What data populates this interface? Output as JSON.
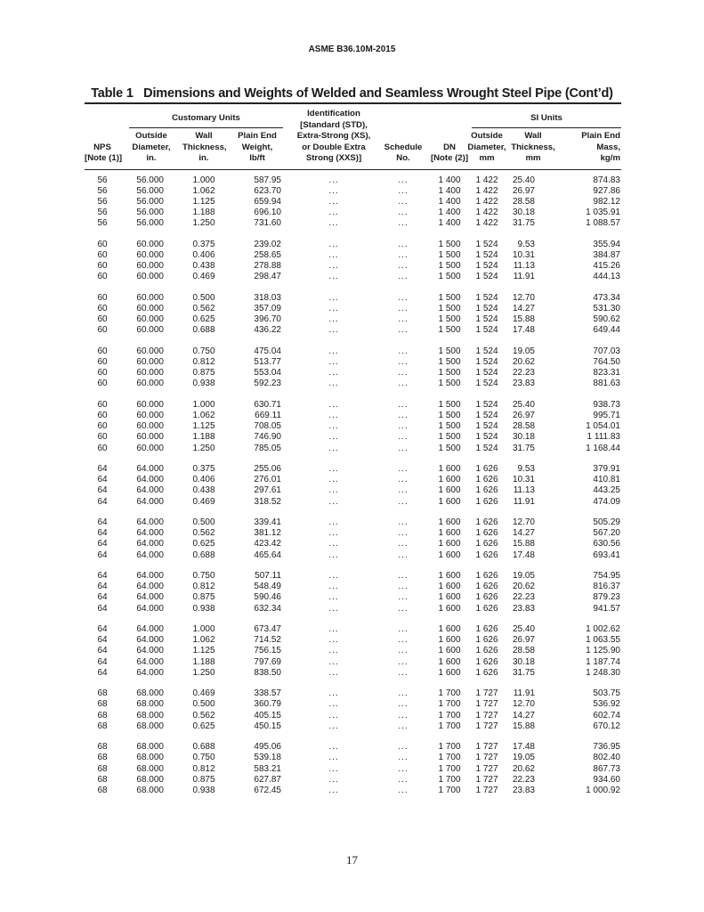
{
  "running_head": "ASME B36.10M-2015",
  "table_title": "Table 1   Dimensions and Weights of Welded and Seamless Wrought Steel Pipe (Cont’d)",
  "header": {
    "customary_units": "Customary Units",
    "si_units": "SI Units",
    "columns": [
      [
        "NPS",
        "[Note (1)]"
      ],
      [
        "Outside",
        "Diameter,",
        "in."
      ],
      [
        "Wall",
        "Thickness,",
        "in."
      ],
      [
        "Plain End",
        "Weight,",
        "lb/ft"
      ],
      [
        "Identification",
        "[Standard (STD),",
        "Extra-Strong (XS),",
        "or Double Extra",
        "Strong (XXS)]"
      ],
      [
        "Schedule",
        "No."
      ],
      [
        "DN",
        "[Note (2)]"
      ],
      [
        "Outside",
        "Diameter,",
        "mm"
      ],
      [
        "Wall",
        "Thickness,",
        "mm"
      ],
      [
        "Plain End",
        "Mass,",
        "kg/m"
      ]
    ]
  },
  "groups": [
    [
      [
        "56",
        "56.000",
        "1.000",
        "587.95",
        "...",
        "...",
        "1 400",
        "1 422",
        "25.40",
        "874.83"
      ],
      [
        "56",
        "56.000",
        "1.062",
        "623.70",
        "...",
        "...",
        "1 400",
        "1 422",
        "26.97",
        "927.86"
      ],
      [
        "56",
        "56.000",
        "1.125",
        "659.94",
        "...",
        "...",
        "1 400",
        "1 422",
        "28.58",
        "982.12"
      ],
      [
        "56",
        "56.000",
        "1.188",
        "696.10",
        "...",
        "...",
        "1 400",
        "1 422",
        "30.18",
        "1 035.91"
      ],
      [
        "56",
        "56.000",
        "1.250",
        "731.60",
        "...",
        "...",
        "1 400",
        "1 422",
        "31.75",
        "1 088.57"
      ]
    ],
    [
      [
        "60",
        "60.000",
        "0.375",
        "239.02",
        "...",
        "...",
        "1 500",
        "1 524",
        "9.53",
        "355.94"
      ],
      [
        "60",
        "60.000",
        "0.406",
        "258.65",
        "...",
        "...",
        "1 500",
        "1 524",
        "10.31",
        "384.87"
      ],
      [
        "60",
        "60.000",
        "0.438",
        "278.88",
        "...",
        "...",
        "1 500",
        "1 524",
        "11.13",
        "415.26"
      ],
      [
        "60",
        "60.000",
        "0.469",
        "298.47",
        "...",
        "...",
        "1 500",
        "1 524",
        "11.91",
        "444.13"
      ]
    ],
    [
      [
        "60",
        "60.000",
        "0.500",
        "318.03",
        "...",
        "...",
        "1 500",
        "1 524",
        "12.70",
        "473.34"
      ],
      [
        "60",
        "60.000",
        "0.562",
        "357.09",
        "...",
        "...",
        "1 500",
        "1 524",
        "14.27",
        "531.30"
      ],
      [
        "60",
        "60.000",
        "0.625",
        "396.70",
        "...",
        "...",
        "1 500",
        "1 524",
        "15.88",
        "590.62"
      ],
      [
        "60",
        "60.000",
        "0.688",
        "436.22",
        "...",
        "...",
        "1 500",
        "1 524",
        "17.48",
        "649.44"
      ]
    ],
    [
      [
        "60",
        "60.000",
        "0.750",
        "475.04",
        "...",
        "...",
        "1 500",
        "1 524",
        "19.05",
        "707.03"
      ],
      [
        "60",
        "60.000",
        "0.812",
        "513.77",
        "...",
        "...",
        "1 500",
        "1 524",
        "20.62",
        "764.50"
      ],
      [
        "60",
        "60.000",
        "0.875",
        "553.04",
        "...",
        "...",
        "1 500",
        "1 524",
        "22.23",
        "823.31"
      ],
      [
        "60",
        "60.000",
        "0.938",
        "592.23",
        "...",
        "...",
        "1 500",
        "1 524",
        "23.83",
        "881.63"
      ]
    ],
    [
      [
        "60",
        "60.000",
        "1.000",
        "630.71",
        "...",
        "...",
        "1 500",
        "1 524",
        "25.40",
        "938.73"
      ],
      [
        "60",
        "60.000",
        "1.062",
        "669.11",
        "...",
        "...",
        "1 500",
        "1 524",
        "26.97",
        "995.71"
      ],
      [
        "60",
        "60.000",
        "1.125",
        "708.05",
        "...",
        "...",
        "1 500",
        "1 524",
        "28.58",
        "1 054.01"
      ],
      [
        "60",
        "60.000",
        "1.188",
        "746.90",
        "...",
        "...",
        "1 500",
        "1 524",
        "30.18",
        "1 111.83"
      ],
      [
        "60",
        "60.000",
        "1.250",
        "785.05",
        "...",
        "...",
        "1 500",
        "1 524",
        "31.75",
        "1 168.44"
      ]
    ],
    [
      [
        "64",
        "64.000",
        "0.375",
        "255.06",
        "...",
        "...",
        "1 600",
        "1 626",
        "9.53",
        "379.91"
      ],
      [
        "64",
        "64.000",
        "0.406",
        "276.01",
        "...",
        "...",
        "1 600",
        "1 626",
        "10.31",
        "410.81"
      ],
      [
        "64",
        "64.000",
        "0.438",
        "297.61",
        "...",
        "...",
        "1 600",
        "1 626",
        "11.13",
        "443.25"
      ],
      [
        "64",
        "64.000",
        "0.469",
        "318.52",
        "...",
        "...",
        "1 600",
        "1 626",
        "11.91",
        "474.09"
      ]
    ],
    [
      [
        "64",
        "64.000",
        "0.500",
        "339.41",
        "...",
        "...",
        "1 600",
        "1 626",
        "12.70",
        "505.29"
      ],
      [
        "64",
        "64.000",
        "0.562",
        "381.12",
        "...",
        "...",
        "1 600",
        "1 626",
        "14.27",
        "567.20"
      ],
      [
        "64",
        "64.000",
        "0.625",
        "423.42",
        "...",
        "...",
        "1 600",
        "1 626",
        "15.88",
        "630.56"
      ],
      [
        "64",
        "64.000",
        "0.688",
        "465.64",
        "...",
        "...",
        "1 600",
        "1 626",
        "17.48",
        "693.41"
      ]
    ],
    [
      [
        "64",
        "64.000",
        "0.750",
        "507.11",
        "...",
        "...",
        "1 600",
        "1 626",
        "19.05",
        "754.95"
      ],
      [
        "64",
        "64.000",
        "0.812",
        "548.49",
        "...",
        "...",
        "1 600",
        "1 626",
        "20.62",
        "816.37"
      ],
      [
        "64",
        "64.000",
        "0.875",
        "590.46",
        "...",
        "...",
        "1 600",
        "1 626",
        "22.23",
        "879.23"
      ],
      [
        "64",
        "64.000",
        "0.938",
        "632.34",
        "...",
        "...",
        "1 600",
        "1 626",
        "23.83",
        "941.57"
      ]
    ],
    [
      [
        "64",
        "64.000",
        "1.000",
        "673.47",
        "...",
        "...",
        "1 600",
        "1 626",
        "25.40",
        "1 002.62"
      ],
      [
        "64",
        "64.000",
        "1.062",
        "714.52",
        "...",
        "...",
        "1 600",
        "1 626",
        "26.97",
        "1 063.55"
      ],
      [
        "64",
        "64.000",
        "1.125",
        "756.15",
        "...",
        "...",
        "1 600",
        "1 626",
        "28.58",
        "1 125.90"
      ],
      [
        "64",
        "64.000",
        "1.188",
        "797.69",
        "...",
        "...",
        "1 600",
        "1 626",
        "30.18",
        "1 187.74"
      ],
      [
        "64",
        "64.000",
        "1.250",
        "838.50",
        "...",
        "...",
        "1 600",
        "1 626",
        "31.75",
        "1 248.30"
      ]
    ],
    [
      [
        "68",
        "68.000",
        "0.469",
        "338.57",
        "...",
        "...",
        "1 700",
        "1 727",
        "11.91",
        "503.75"
      ],
      [
        "68",
        "68.000",
        "0.500",
        "360.79",
        "...",
        "...",
        "1 700",
        "1 727",
        "12.70",
        "536.92"
      ],
      [
        "68",
        "68.000",
        "0.562",
        "405.15",
        "...",
        "...",
        "1 700",
        "1 727",
        "14.27",
        "602.74"
      ],
      [
        "68",
        "68.000",
        "0.625",
        "450.15",
        "...",
        "...",
        "1 700",
        "1 727",
        "15.88",
        "670.12"
      ]
    ],
    [
      [
        "68",
        "68.000",
        "0.688",
        "495.06",
        "...",
        "...",
        "1 700",
        "1 727",
        "17.48",
        "736.95"
      ],
      [
        "68",
        "68.000",
        "0.750",
        "539.18",
        "...",
        "...",
        "1 700",
        "1 727",
        "19.05",
        "802.40"
      ],
      [
        "68",
        "68.000",
        "0.812",
        "583.21",
        "...",
        "...",
        "1 700",
        "1 727",
        "20.62",
        "867.73"
      ],
      [
        "68",
        "68.000",
        "0.875",
        "627.87",
        "...",
        "...",
        "1 700",
        "1 727",
        "22.23",
        "934.60"
      ],
      [
        "68",
        "68.000",
        "0.938",
        "672.45",
        "...",
        "...",
        "1 700",
        "1 727",
        "23.83",
        "1 000.92"
      ]
    ]
  ],
  "page_number": "17"
}
